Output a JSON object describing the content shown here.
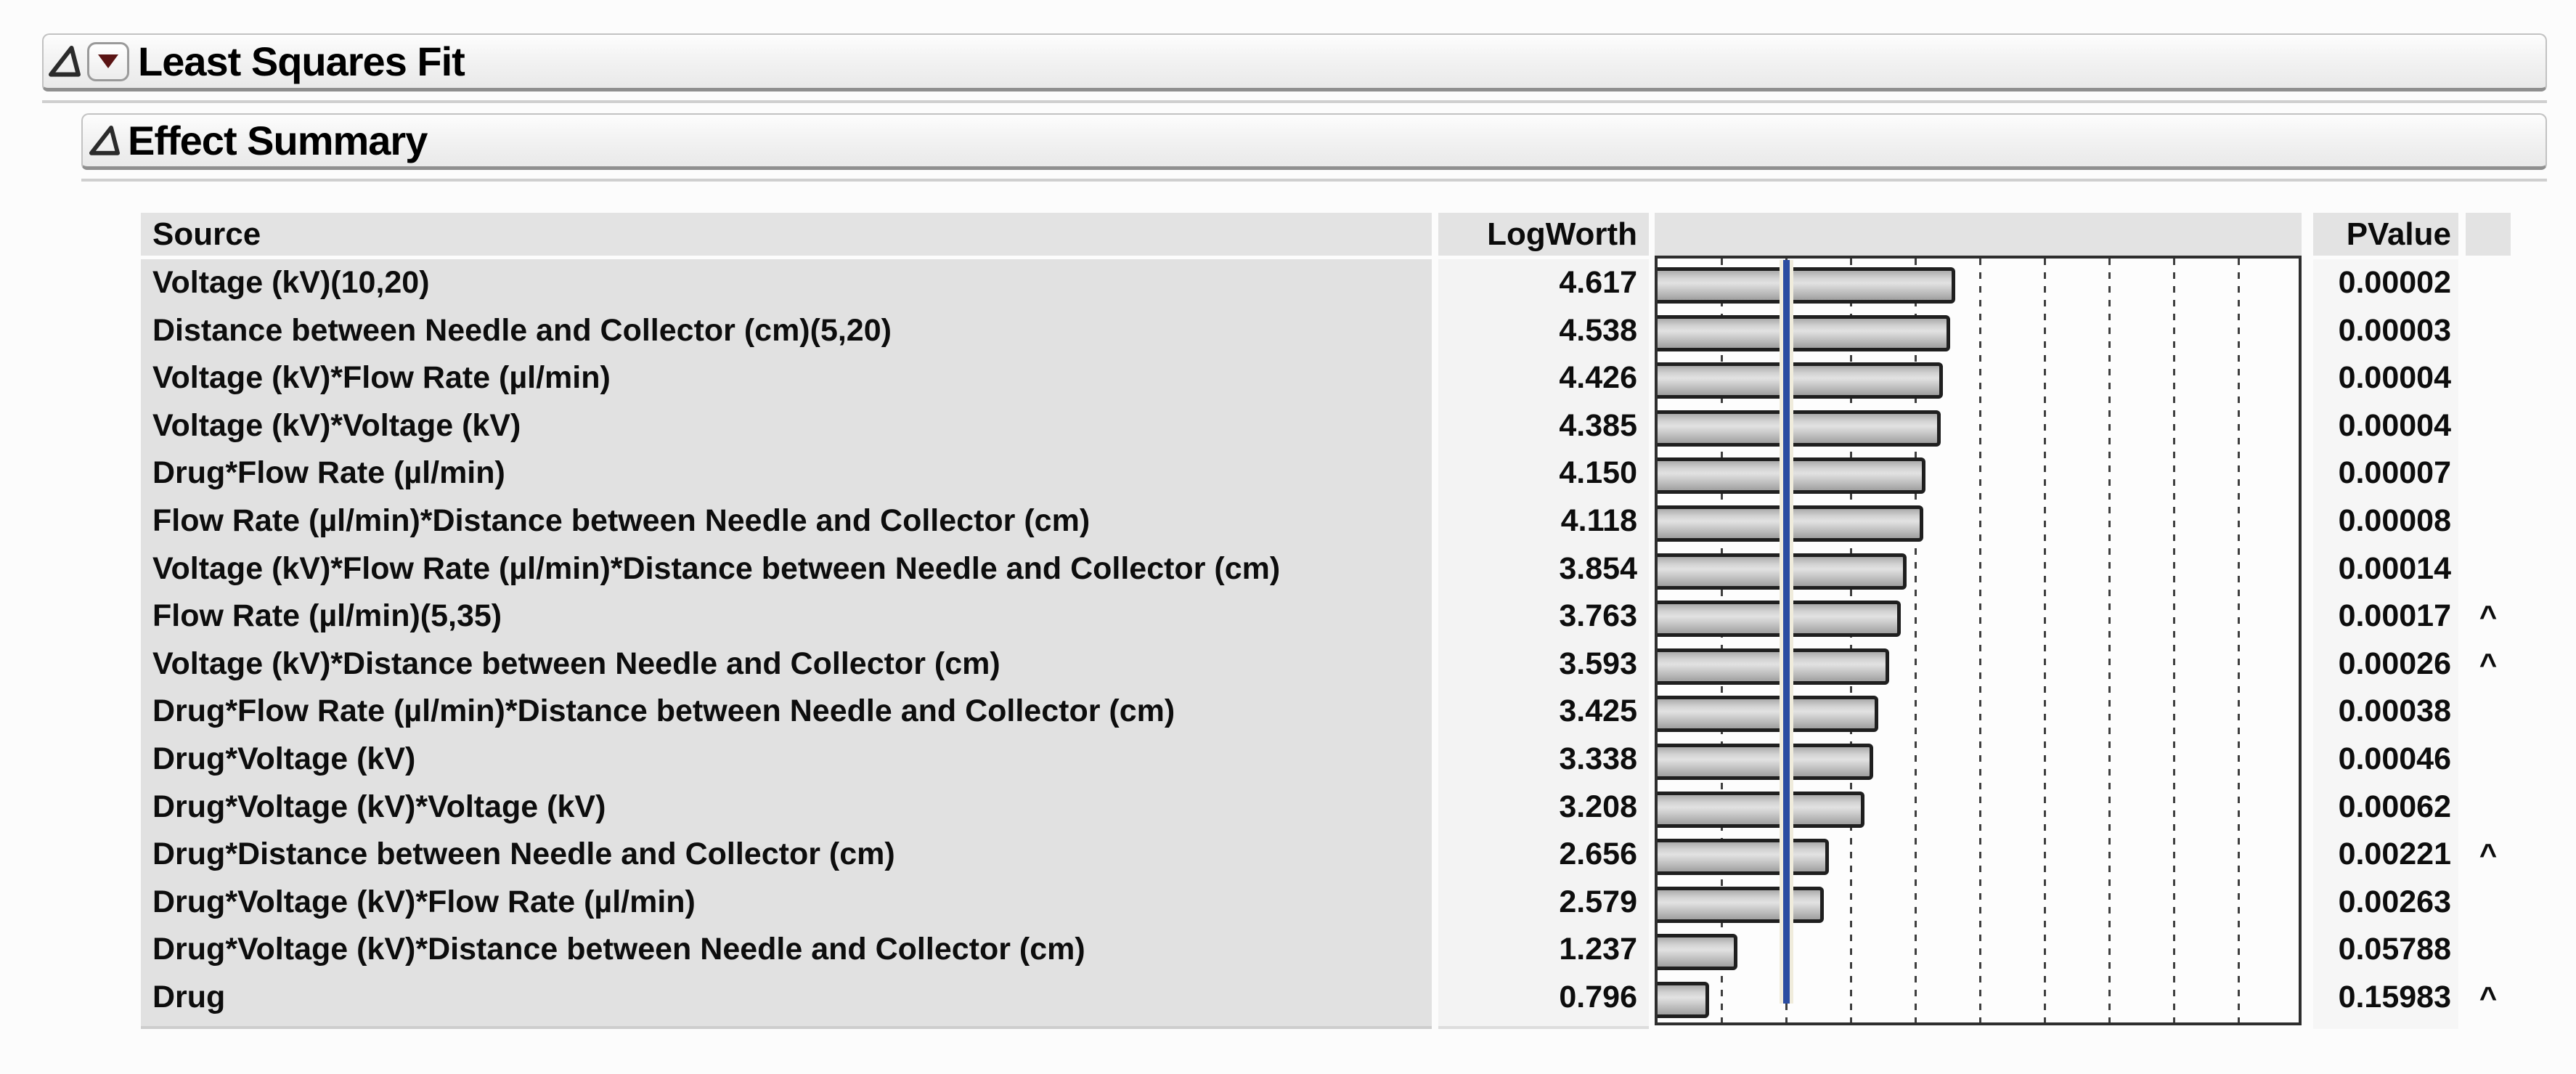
{
  "outlines": {
    "least_squares_fit": "Least Squares Fit",
    "effect_summary": "Effect Summary"
  },
  "icons": {
    "disclosure_open": "open-outline-triangle",
    "red_triangle_menu": "red-triangle-dropdown"
  },
  "table": {
    "columns": {
      "source": "Source",
      "logworth": "LogWorth",
      "pvalue": "PValue"
    },
    "rows": [
      {
        "source": "Voltage (kV)(10,20)",
        "logworth": "4.617",
        "pvalue": "0.00002",
        "flag": ""
      },
      {
        "source": "Distance between Needle and Collector (cm)(5,20)",
        "logworth": "4.538",
        "pvalue": "0.00003",
        "flag": ""
      },
      {
        "source": "Voltage (kV)*Flow Rate (µl/min)",
        "logworth": "4.426",
        "pvalue": "0.00004",
        "flag": ""
      },
      {
        "source": "Voltage (kV)*Voltage (kV)",
        "logworth": "4.385",
        "pvalue": "0.00004",
        "flag": ""
      },
      {
        "source": "Drug*Flow Rate (µl/min)",
        "logworth": "4.150",
        "pvalue": "0.00007",
        "flag": ""
      },
      {
        "source": "Flow Rate (µl/min)*Distance between Needle and Collector (cm)",
        "logworth": "4.118",
        "pvalue": "0.00008",
        "flag": ""
      },
      {
        "source": "Voltage (kV)*Flow Rate (µl/min)*Distance between Needle and Collector (cm)",
        "logworth": "3.854",
        "pvalue": "0.00014",
        "flag": ""
      },
      {
        "source": "Flow Rate (µl/min)(5,35)",
        "logworth": "3.763",
        "pvalue": "0.00017",
        "flag": "^"
      },
      {
        "source": "Voltage (kV)*Distance between Needle and Collector (cm)",
        "logworth": "3.593",
        "pvalue": "0.00026",
        "flag": "^"
      },
      {
        "source": "Drug*Flow Rate (µl/min)*Distance between Needle and Collector (cm)",
        "logworth": "3.425",
        "pvalue": "0.00038",
        "flag": ""
      },
      {
        "source": "Drug*Voltage (kV)",
        "logworth": "3.338",
        "pvalue": "0.00046",
        "flag": ""
      },
      {
        "source": "Drug*Voltage (kV)*Voltage (kV)",
        "logworth": "3.208",
        "pvalue": "0.00062",
        "flag": ""
      },
      {
        "source": "Drug*Distance between Needle and Collector (cm)",
        "logworth": "2.656",
        "pvalue": "0.00221",
        "flag": "^"
      },
      {
        "source": "Drug*Voltage (kV)*Flow Rate (µl/min)",
        "logworth": "2.579",
        "pvalue": "0.00263",
        "flag": ""
      },
      {
        "source": "Drug*Voltage (kV)*Distance between Needle and Collector (cm)",
        "logworth": "1.237",
        "pvalue": "0.05788",
        "flag": ""
      },
      {
        "source": "Drug",
        "logworth": "0.796",
        "pvalue": "0.15983",
        "flag": "^"
      }
    ]
  },
  "chart_data": {
    "type": "bar",
    "orientation": "horizontal",
    "title": "Effect Summary LogWorth plot",
    "categories": [
      "Voltage (kV)(10,20)",
      "Distance between Needle and Collector (cm)(5,20)",
      "Voltage (kV)*Flow Rate (µl/min)",
      "Voltage (kV)*Voltage (kV)",
      "Drug*Flow Rate (µl/min)",
      "Flow Rate (µl/min)*Distance between Needle and Collector (cm)",
      "Voltage (kV)*Flow Rate (µl/min)*Distance between Needle and Collector (cm)",
      "Flow Rate (µl/min)(5,35)",
      "Voltage (kV)*Distance between Needle and Collector (cm)",
      "Drug*Flow Rate (µl/min)*Distance between Needle and Collector (cm)",
      "Drug*Voltage (kV)",
      "Drug*Voltage (kV)*Voltage (kV)",
      "Drug*Distance between Needle and Collector (cm)",
      "Drug*Voltage (kV)*Flow Rate (µl/min)",
      "Drug*Voltage (kV)*Distance between Needle and Collector (cm)",
      "Drug"
    ],
    "values": [
      4.617,
      4.538,
      4.426,
      4.385,
      4.15,
      4.118,
      3.854,
      3.763,
      3.593,
      3.425,
      3.338,
      3.208,
      2.656,
      2.579,
      1.237,
      0.796
    ],
    "pvalues": [
      2e-05,
      3e-05,
      4e-05,
      4e-05,
      7e-05,
      8e-05,
      0.00014,
      0.00017,
      0.00026,
      0.00038,
      0.00046,
      0.00062,
      0.00221,
      0.00263,
      0.05788,
      0.15983
    ],
    "flagged_row_indices": [
      7,
      8,
      12,
      15
    ],
    "xlabel": "LogWorth",
    "xlim": [
      0,
      10
    ],
    "gridline_interval": 1,
    "grid_style": "dashed-vertical",
    "reference_line": {
      "x": 2,
      "meaning": "LogWorth = 2 (p = 0.01)",
      "color": "#2a4ca1"
    },
    "bar_color": "#c9c9c9",
    "legend": "none"
  },
  "colors": {
    "accent_blue": "#2a4ca1",
    "red_triangle": "#5a1414",
    "header_bg": "#e3e3e3",
    "source_cell_bg": "#e1e1e1",
    "value_cell_bg": "#f3f3f3",
    "chart_frame": "#2e2e2e"
  }
}
